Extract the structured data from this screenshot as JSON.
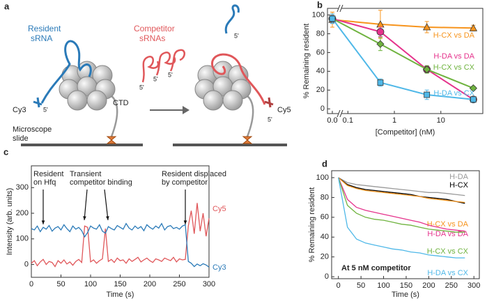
{
  "diagram": {
    "panel_label": "a",
    "resident_label": [
      "Resident",
      "sRNA"
    ],
    "competitor_label": [
      "Competitor",
      "sRNAs"
    ],
    "cy3": "Cy3",
    "cy5": "Cy5",
    "ctd": "CTD",
    "slide_label": [
      "Microscope",
      "slide"
    ],
    "five_prime": [
      "5'",
      "5'",
      "5'",
      "5'",
      "5'",
      "5'"
    ]
  },
  "chart_data": [
    {
      "type": "line",
      "panel_label": "b",
      "xlabel": "[Competitor] (nM)",
      "ylabel": "% Remaining resident",
      "x": [
        0,
        0.5,
        5,
        50
      ],
      "xlog": true,
      "x_break": true,
      "xlim": [
        0.07,
        80
      ],
      "xticks": [
        {
          "value": 0,
          "label": "0.0"
        },
        0.1,
        1,
        10
      ],
      "ylim": [
        -5,
        107
      ],
      "yticks": [
        0,
        20,
        40,
        60,
        80,
        100
      ],
      "series": [
        {
          "name": "H-CX vs DA",
          "color": "#f7941d",
          "marker": "triangle",
          "values": [
            95,
            90,
            87,
            86
          ],
          "errors": [
            8,
            15,
            6,
            3
          ]
        },
        {
          "name": "H-DA vs DA",
          "color": "#e5338c",
          "marker": "circle",
          "values": [
            96,
            82,
            42,
            10
          ],
          "errors": [
            5,
            5,
            4,
            2
          ]
        },
        {
          "name": "H-CX vs CX",
          "color": "#6fb33f",
          "marker": "diamond",
          "values": [
            96,
            69,
            42,
            22
          ],
          "errors": [
            5,
            7,
            4,
            2
          ]
        },
        {
          "name": "H-DA vs CX",
          "color": "#4fb8e8",
          "marker": "square",
          "values": [
            96,
            28,
            15,
            10
          ],
          "errors": [
            5,
            4,
            5,
            3
          ]
        }
      ]
    },
    {
      "type": "line",
      "panel_label": "c",
      "xlabel": "Time (s)",
      "ylabel": "Intensity (arb. units)",
      "annotations": [
        [
          "Resident",
          "on Hfq"
        ],
        [
          "Transient",
          "competitor binding"
        ],
        [
          "Resident displaced",
          "by competitor"
        ]
      ],
      "x": [
        0,
        5,
        10,
        15,
        20,
        25,
        30,
        35,
        40,
        45,
        50,
        55,
        60,
        65,
        70,
        75,
        80,
        85,
        90,
        95,
        100,
        105,
        110,
        115,
        120,
        125,
        130,
        135,
        140,
        145,
        150,
        155,
        160,
        165,
        170,
        175,
        180,
        185,
        190,
        195,
        200,
        205,
        210,
        215,
        220,
        225,
        230,
        235,
        240,
        245,
        250,
        255,
        260,
        265,
        270,
        275,
        280,
        285,
        290,
        295,
        300
      ],
      "xlim": [
        0,
        300
      ],
      "xticks": [
        0,
        50,
        100,
        150,
        200,
        250,
        300
      ],
      "ylim": [
        -50,
        385
      ],
      "yticks": [
        0,
        100,
        200,
        300
      ],
      "series": [
        {
          "name": "Cy5",
          "color": "#e0575a",
          "values": [
            5,
            15,
            -5,
            10,
            20,
            0,
            12,
            8,
            -8,
            15,
            5,
            18,
            2,
            10,
            -3,
            12,
            20,
            8,
            150,
            145,
            10,
            18,
            5,
            15,
            22,
            140,
            12,
            20,
            8,
            25,
            15,
            18,
            5,
            22,
            12,
            20,
            28,
            10,
            18,
            25,
            15,
            8,
            22,
            18,
            12,
            25,
            20,
            15,
            28,
            10,
            22,
            18,
            20,
            150,
            210,
            120,
            240,
            130,
            200,
            110,
            180
          ]
        },
        {
          "name": "Cy3",
          "color": "#2a7ab8",
          "values": [
            140,
            135,
            150,
            128,
            145,
            138,
            152,
            130,
            142,
            148,
            135,
            155,
            140,
            128,
            150,
            138,
            145,
            132,
            108,
            125,
            150,
            142,
            138,
            155,
            130,
            122,
            148,
            140,
            135,
            152,
            145,
            138,
            160,
            142,
            135,
            150,
            140,
            148,
            132,
            155,
            145,
            138,
            150,
            142,
            160,
            135,
            148,
            152,
            140,
            145,
            138,
            150,
            155,
            12,
            5,
            -8,
            2,
            -5,
            3,
            -2,
            -10
          ]
        }
      ]
    },
    {
      "type": "line",
      "panel_label": "d",
      "xlabel": "Time (s)",
      "ylabel": "% Remaining resident",
      "annotation": "At 5 nM competitor",
      "x": [
        0,
        20,
        40,
        60,
        80,
        100,
        120,
        140,
        160,
        180,
        200,
        220,
        240,
        260,
        280
      ],
      "xlim": [
        -15,
        312
      ],
      "xticks": [
        0,
        50,
        100,
        150,
        200,
        250,
        300
      ],
      "ylim": [
        -2,
        107
      ],
      "yticks": [
        0,
        20,
        40,
        60,
        80,
        100
      ],
      "series": [
        {
          "name": "H-DA",
          "color": "#999999",
          "values": [
            100,
            95,
            93,
            92,
            91,
            90,
            89,
            88,
            87,
            86,
            85,
            85,
            84,
            83,
            82
          ]
        },
        {
          "name": "H-CX",
          "color": "#000000",
          "values": [
            100,
            93,
            90,
            88,
            87,
            86,
            85,
            84,
            83,
            81,
            80,
            79,
            78,
            76,
            74
          ]
        },
        {
          "name": "H-CX vs DA",
          "color": "#f7941d",
          "values": [
            100,
            92,
            89,
            87,
            86,
            85,
            84,
            83,
            82,
            81,
            79,
            78,
            77,
            76,
            75
          ]
        },
        {
          "name": "H-DA vs DA",
          "color": "#e5338c",
          "values": [
            100,
            78,
            70,
            67,
            65,
            63,
            61,
            59,
            57,
            55,
            52,
            50,
            48,
            47,
            46
          ]
        },
        {
          "name": "H-CX vs CX",
          "color": "#6fb33f",
          "values": [
            100,
            72,
            64,
            60,
            58,
            57,
            55,
            53,
            52,
            50,
            48,
            47,
            46,
            45,
            45
          ]
        },
        {
          "name": "H-DA vs CX",
          "color": "#4fb8e8",
          "values": [
            100,
            50,
            38,
            34,
            32,
            30,
            28,
            27,
            25,
            24,
            22,
            21,
            20,
            19,
            19
          ]
        }
      ]
    }
  ]
}
